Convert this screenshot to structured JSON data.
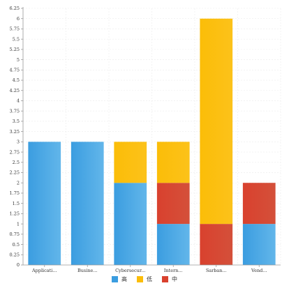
{
  "chart_data": {
    "type": "bar",
    "stacked": true,
    "categories": [
      "Applicati...",
      "Busine...",
      "Cybersecur...",
      "Intern...",
      "Sarban...",
      "Vend..."
    ],
    "series": [
      {
        "name": "高",
        "color": "#3b9de0",
        "values": [
          3,
          3,
          2,
          1,
          0,
          1
        ]
      },
      {
        "name": "中",
        "color": "#d9412e",
        "values": [
          0,
          0,
          0,
          1,
          1,
          1
        ]
      },
      {
        "name": "低",
        "color": "#fbbd08",
        "values": [
          0,
          0,
          1,
          1,
          5,
          0
        ]
      }
    ],
    "legend_order": [
      "高",
      "低",
      "中"
    ],
    "ylim": [
      0,
      6.25
    ],
    "ytick_step": 0.25,
    "yticks": [
      "0",
      "0.25",
      "0.5",
      "0.75",
      "1",
      "1.25",
      "1.5",
      "1.75",
      "2",
      "2.25",
      "2.5",
      "2.75",
      "3",
      "3.25",
      "3.5",
      "3.75",
      "4",
      "4.25",
      "4.5",
      "4.75",
      "5",
      "5.25",
      "5.5",
      "5.75",
      "6",
      "6.25"
    ],
    "grid": true,
    "legend_position": "bottom"
  }
}
